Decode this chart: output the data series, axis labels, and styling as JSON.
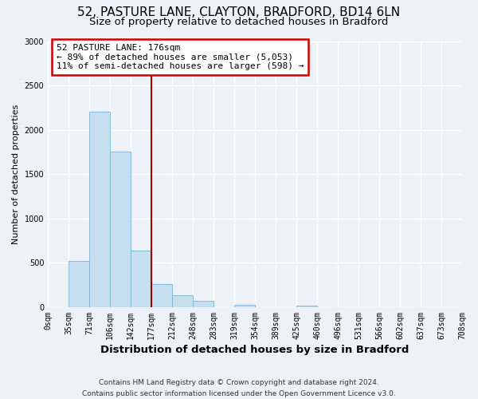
{
  "title": "52, PASTURE LANE, CLAYTON, BRADFORD, BD14 6LN",
  "subtitle": "Size of property relative to detached houses in Bradford",
  "xlabel": "Distribution of detached houses by size in Bradford",
  "ylabel": "Number of detached properties",
  "bin_labels": [
    "0sqm",
    "35sqm",
    "71sqm",
    "106sqm",
    "142sqm",
    "177sqm",
    "212sqm",
    "248sqm",
    "283sqm",
    "319sqm",
    "354sqm",
    "389sqm",
    "425sqm",
    "460sqm",
    "496sqm",
    "531sqm",
    "566sqm",
    "602sqm",
    "637sqm",
    "673sqm",
    "708sqm"
  ],
  "bar_heights": [
    0,
    520,
    2200,
    1750,
    640,
    260,
    135,
    70,
    0,
    30,
    0,
    0,
    15,
    0,
    0,
    0,
    0,
    0,
    0,
    0
  ],
  "bar_color": "#c5dff0",
  "bar_edge_color": "#7db3d4",
  "property_line_x": 5,
  "property_line_color": "#aa0000",
  "annotation_text": "52 PASTURE LANE: 176sqm\n← 89% of detached houses are smaller (5,053)\n11% of semi-detached houses are larger (598) →",
  "annotation_box_color": "white",
  "annotation_box_edge_color": "#cc0000",
  "ylim": [
    0,
    3000
  ],
  "yticks": [
    0,
    500,
    1000,
    1500,
    2000,
    2500,
    3000
  ],
  "footer_line1": "Contains HM Land Registry data © Crown copyright and database right 2024.",
  "footer_line2": "Contains public sector information licensed under the Open Government Licence v3.0.",
  "background_color": "#edf2f9",
  "grid_color": "white",
  "title_fontsize": 11,
  "subtitle_fontsize": 9.5,
  "xlabel_fontsize": 9.5,
  "ylabel_fontsize": 8,
  "tick_fontsize": 7,
  "annotation_fontsize": 8,
  "footer_fontsize": 6.5
}
